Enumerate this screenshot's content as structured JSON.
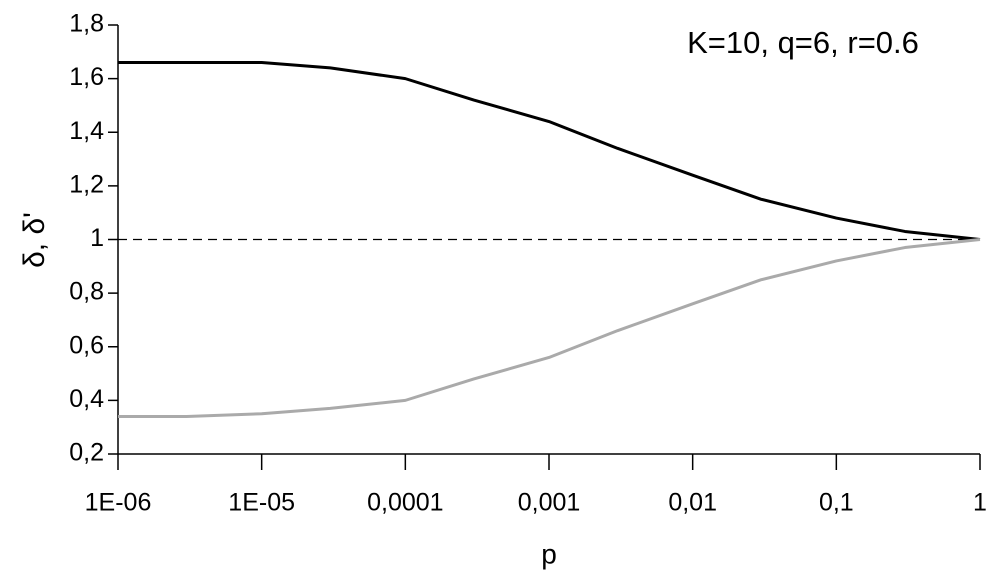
{
  "chart_data": {
    "type": "line",
    "annotation": "K=10, q=6, r=0.6",
    "x_label": "p",
    "y_label": "δ, δ'",
    "xscale": "log",
    "xlim": [
      1e-06,
      1
    ],
    "xticks": [
      {
        "value": 1e-06,
        "label": "1E-06"
      },
      {
        "value": 1e-05,
        "label": "1E-05"
      },
      {
        "value": 0.0001,
        "label": "0,0001"
      },
      {
        "value": 0.001,
        "label": "0,001"
      },
      {
        "value": 0.01,
        "label": "0,01"
      },
      {
        "value": 0.1,
        "label": "0,1"
      },
      1
    ],
    "ylim": [
      0.2,
      1.8
    ],
    "yticks": [
      {
        "value": 0.2,
        "label": "0,2"
      },
      {
        "value": 0.4,
        "label": "0,4"
      },
      {
        "value": 0.6,
        "label": "0,6"
      },
      {
        "value": 0.8,
        "label": "0,8"
      },
      1,
      {
        "value": 1.2,
        "label": "1,2"
      },
      {
        "value": 1.4,
        "label": "1,4"
      },
      {
        "value": 1.6,
        "label": "1,6"
      },
      {
        "value": 1.8,
        "label": "1,8"
      }
    ],
    "reference_line": 1,
    "x": [
      1e-06,
      3e-06,
      1e-05,
      3e-05,
      0.0001,
      0.0003,
      0.001,
      0.003,
      0.01,
      0.03,
      0.1,
      0.3,
      1
    ],
    "series": [
      {
        "color": "#000000",
        "values": [
          1.66,
          1.66,
          1.66,
          1.64,
          1.6,
          1.52,
          1.44,
          1.34,
          1.24,
          1.15,
          1.08,
          1.03,
          1.0
        ]
      },
      {
        "color": "#aaaaaa",
        "values": [
          0.34,
          0.34,
          0.35,
          0.37,
          0.4,
          0.48,
          0.56,
          0.66,
          0.76,
          0.85,
          0.92,
          0.97,
          1.0
        ]
      }
    ]
  }
}
